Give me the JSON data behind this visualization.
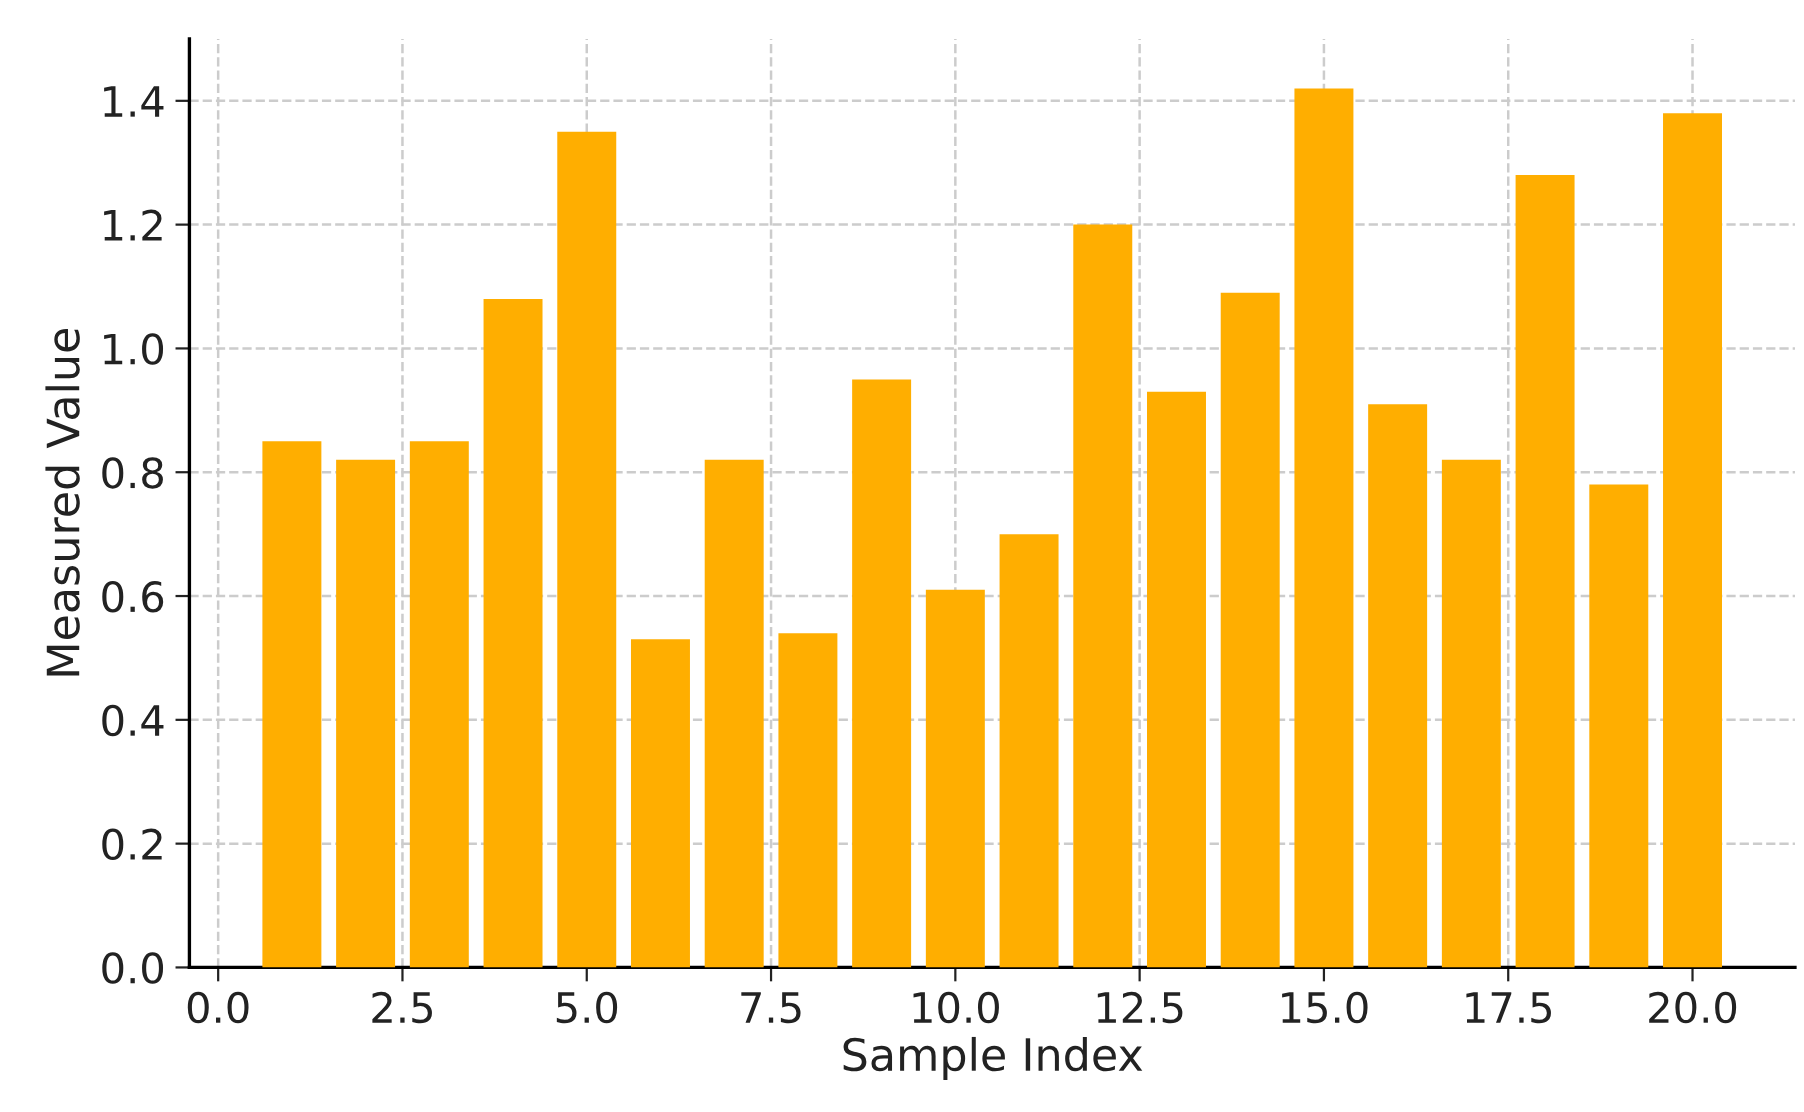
{
  "chart_data": {
    "type": "bar",
    "xlabel": "Sample Index",
    "ylabel": "Measured Value",
    "x": [
      1,
      2,
      3,
      4,
      5,
      6,
      7,
      8,
      9,
      10,
      11,
      12,
      13,
      14,
      15,
      16,
      17,
      18,
      19,
      20
    ],
    "values": [
      0.85,
      0.82,
      0.85,
      1.08,
      1.35,
      0.53,
      0.82,
      0.54,
      0.95,
      0.61,
      0.7,
      1.2,
      0.93,
      1.09,
      1.42,
      0.91,
      0.82,
      1.28,
      0.78,
      1.38
    ],
    "color": "#ffae00",
    "xlim": [
      -0.39,
      21.39
    ],
    "xticks": [
      {
        "value": 0,
        "label": "0.0"
      },
      {
        "value": 2.5,
        "label": "2.5"
      },
      {
        "value": 5,
        "label": "5.0"
      },
      {
        "value": 7.5,
        "label": "7.5"
      },
      {
        "value": 10,
        "label": "10.0"
      },
      {
        "value": 12.5,
        "label": "12.5"
      },
      {
        "value": 15,
        "label": "15.0"
      },
      {
        "value": 17.5,
        "label": "17.5"
      },
      {
        "value": 20,
        "label": "20.0"
      }
    ],
    "ylim": [
      0,
      1.5
    ],
    "yticks": [
      {
        "value": 0,
        "label": "0.0"
      },
      {
        "value": 0.2,
        "label": "0.2"
      },
      {
        "value": 0.4,
        "label": "0.4"
      },
      {
        "value": 0.6,
        "label": "0.6"
      },
      {
        "value": 0.8,
        "label": "0.8"
      },
      {
        "value": 1.0,
        "label": "1.0"
      },
      {
        "value": 1.2,
        "label": "1.2"
      },
      {
        "value": 1.4,
        "label": "1.4"
      }
    ],
    "grid": true
  }
}
